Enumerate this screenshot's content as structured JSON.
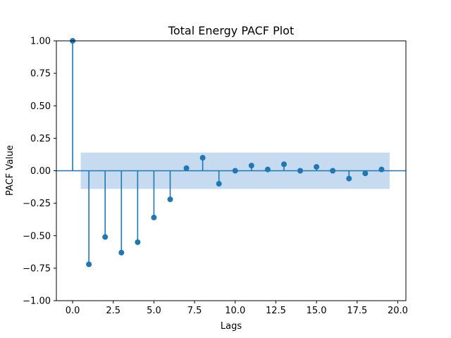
{
  "chart_data": {
    "type": "stem",
    "title": "Total Energy PACF Plot",
    "xlabel": "Lags",
    "ylabel": "PACF Value",
    "xlim": [
      -1,
      20.5
    ],
    "ylim": [
      -1.0,
      1.0
    ],
    "xticks": [
      0.0,
      2.5,
      5.0,
      7.5,
      10.0,
      12.5,
      15.0,
      17.5,
      20.0
    ],
    "xtick_labels": [
      "0.0",
      "2.5",
      "5.0",
      "7.5",
      "10.0",
      "12.5",
      "15.0",
      "17.5",
      "20.0"
    ],
    "yticks": [
      -1.0,
      -0.75,
      -0.5,
      -0.25,
      0.0,
      0.25,
      0.5,
      0.75,
      1.0
    ],
    "ytick_labels": [
      "−1.00",
      "−0.75",
      "−0.50",
      "−0.25",
      "0.00",
      "0.25",
      "0.50",
      "0.75",
      "1.00"
    ],
    "grid": false,
    "lags": [
      0,
      1,
      2,
      3,
      4,
      5,
      6,
      7,
      8,
      9,
      10,
      11,
      12,
      13,
      14,
      15,
      16,
      17,
      18,
      19
    ],
    "values": [
      1.0,
      -0.72,
      -0.51,
      -0.63,
      -0.55,
      -0.36,
      -0.22,
      0.02,
      0.1,
      -0.1,
      0.0,
      0.04,
      0.01,
      0.05,
      0.0,
      0.03,
      0.0,
      -0.06,
      -0.02,
      0.01
    ],
    "confidence_band": {
      "x_range": [
        0.5,
        19.5
      ],
      "lower": -0.14,
      "upper": 0.14
    },
    "colors": {
      "stem": "#1f77b4",
      "band": "#c6dbef"
    }
  }
}
